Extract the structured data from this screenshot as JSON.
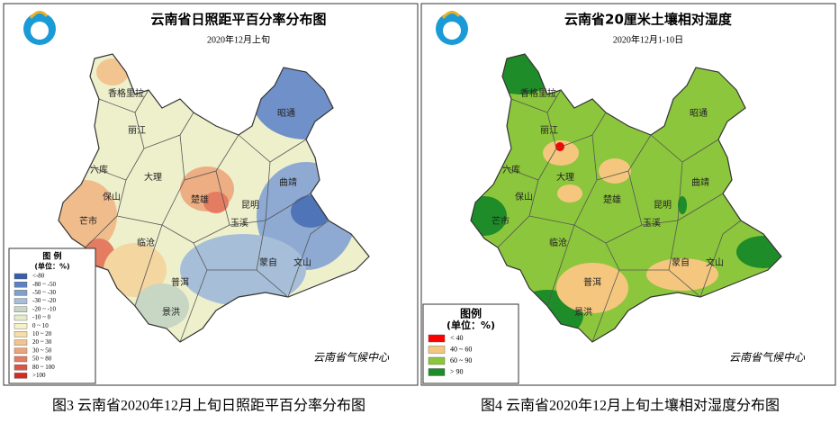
{
  "panels": [
    {
      "title": "云南省日照距平百分率分布图",
      "subtitle": "2020年12月上旬",
      "cities": [
        "香格里拉",
        "丽江",
        "六库",
        "大理",
        "保山",
        "芒市",
        "临沧",
        "楚雄",
        "昆明",
        "玉溪",
        "曲靖",
        "昭通",
        "蒙自",
        "文山",
        "普洱",
        "景洪"
      ],
      "legend": {
        "title": "图 例",
        "unit": "(单位：%)",
        "items": [
          {
            "label": "<-80",
            "color": "#3a5fa8"
          },
          {
            "label": "-80 ~ -50",
            "color": "#5b82c0"
          },
          {
            "label": "-50 ~ -30",
            "color": "#7fa0cc"
          },
          {
            "label": "-30 ~ -20",
            "color": "#a6bed8"
          },
          {
            "label": "-20 ~ -10",
            "color": "#c8d6c4"
          },
          {
            "label": "-10 ~ 0",
            "color": "#e6ecc8"
          },
          {
            "label": "0 ~ 10",
            "color": "#f6f1c6"
          },
          {
            "label": "10 ~ 20",
            "color": "#f6dca6"
          },
          {
            "label": "20 ~ 30",
            "color": "#f2c490"
          },
          {
            "label": "30 ~ 50",
            "color": "#eca47c"
          },
          {
            "label": "50 ~ 80",
            "color": "#e47c62"
          },
          {
            "label": "80 ~ 100",
            "color": "#dc5444"
          },
          {
            "label": ">100",
            "color": "#d42a20"
          }
        ]
      },
      "footer": "云南省气候中心",
      "caption": "图3 云南省2020年12月上旬日照距平百分率分布图"
    },
    {
      "title": "云南省20厘米土壤相对湿度",
      "subtitle": "2020年12月1-10日",
      "cities": [
        "香格里拉",
        "丽江",
        "六库",
        "大理",
        "保山",
        "芒市",
        "临沧",
        "楚雄",
        "昆明",
        "玉溪",
        "曲靖",
        "昭通",
        "蒙自",
        "文山",
        "普洱",
        "景洪"
      ],
      "legend": {
        "title": "图例",
        "unit": "(单位：%)",
        "items": [
          {
            "label": "< 40",
            "color": "#ff0000"
          },
          {
            "label": "40 ~ 60",
            "color": "#f5c77e"
          },
          {
            "label": "60 ~ 90",
            "color": "#8cc63c"
          },
          {
            "label": "> 90",
            "color": "#1e8c28"
          }
        ]
      },
      "footer": "云南省气候中心",
      "caption": "图4 云南省2020年12月上旬土壤相对湿度分布图"
    }
  ]
}
